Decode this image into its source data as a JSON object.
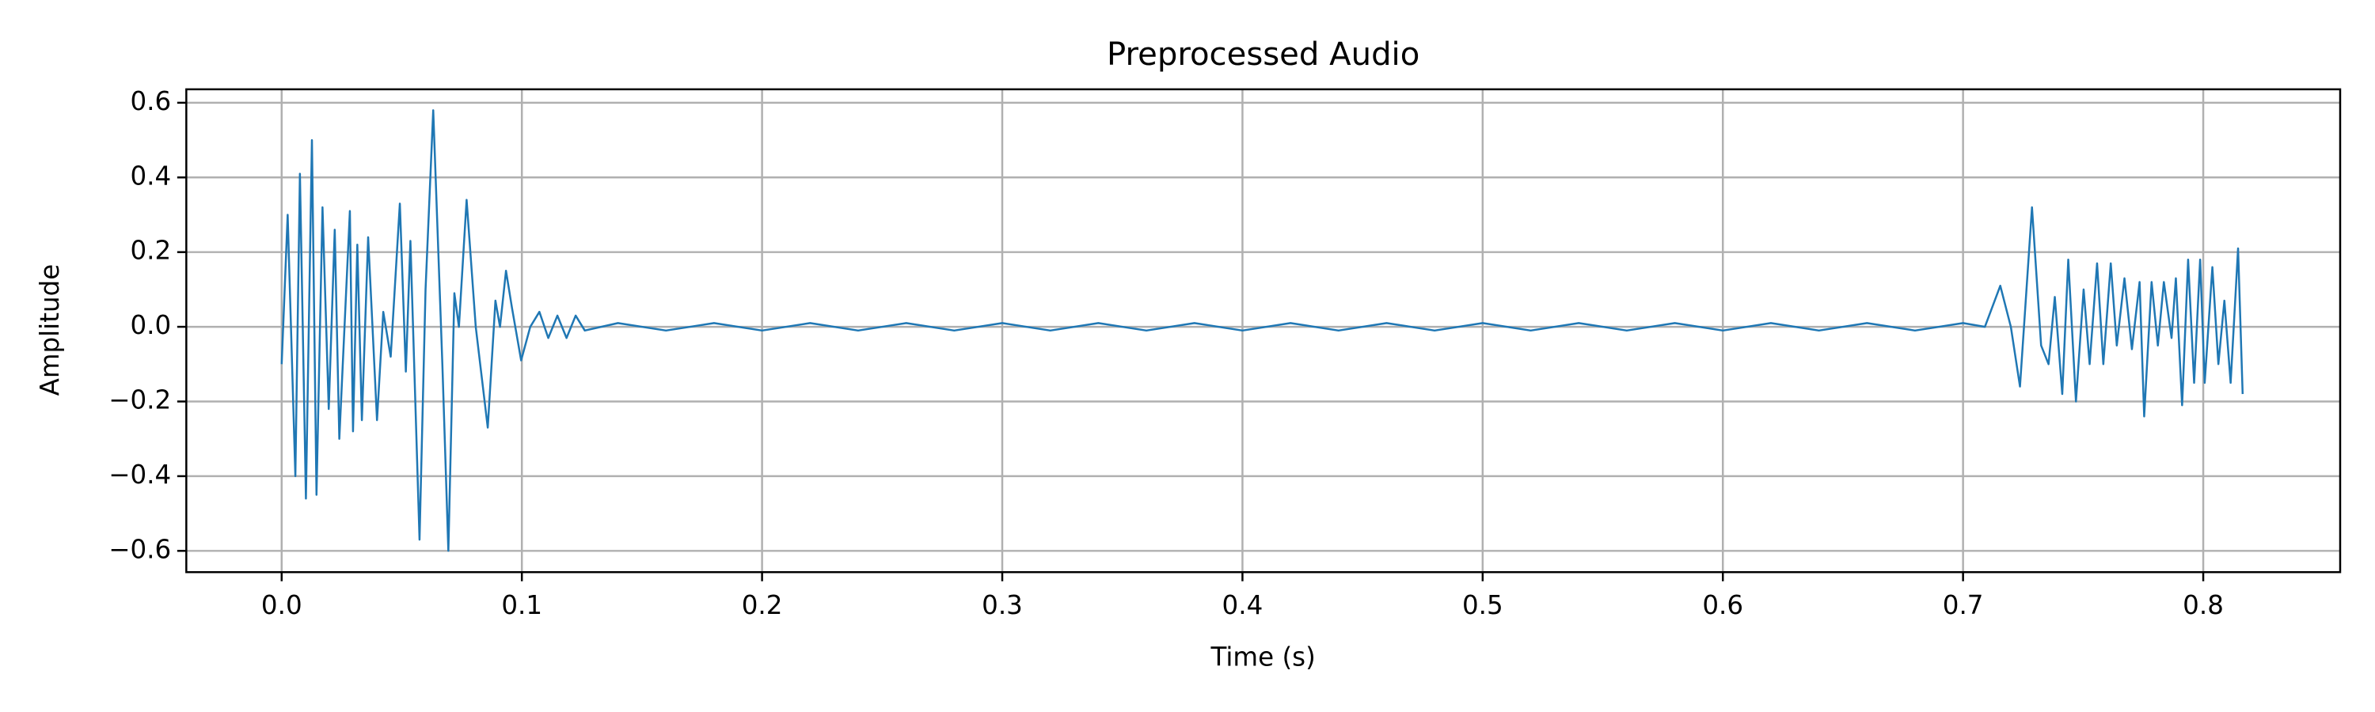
{
  "chart_data": {
    "type": "line",
    "title": "Preprocessed Audio",
    "x_label": "Time (s)",
    "y_label": "Amplitude",
    "color": "#1f77b4",
    "grid": true,
    "xlim": [
      -0.0397,
      0.857
    ],
    "ylim": [
      -0.657,
      0.636
    ],
    "xticks": [
      {
        "value": 0,
        "label": "0.0"
      },
      0.1,
      0.2,
      0.3,
      0.4,
      0.5,
      0.6,
      0.7,
      0.8
    ],
    "yticks": [
      {
        "value": -0.6,
        "label": "−0.6"
      },
      {
        "value": -0.4,
        "label": "−0.4"
      },
      {
        "value": -0.2,
        "label": "−0.2"
      },
      {
        "value": 0,
        "label": "0.0"
      },
      0.2,
      0.4,
      0.6
    ],
    "x": [
      0,
      0.0025,
      0.0057,
      0.0076,
      0.0101,
      0.0126,
      0.0145,
      0.017,
      0.0196,
      0.0221,
      0.024,
      0.0284,
      0.0297,
      0.0315,
      0.0334,
      0.036,
      0.0397,
      0.0423,
      0.0454,
      0.0492,
      0.0517,
      0.0536,
      0.0574,
      0.0599,
      0.0631,
      0.0669,
      0.0694,
      0.0719,
      0.0738,
      0.077,
      0.0808,
      0.0858,
      0.089,
      0.0909,
      0.0934,
      0.0959,
      0.0997,
      0.1035,
      0.1073,
      0.111,
      0.1148,
      0.1186,
      0.1224,
      0.1262,
      0.14,
      0.16,
      0.18,
      0.2,
      0.22,
      0.24,
      0.26,
      0.28,
      0.3,
      0.32,
      0.34,
      0.36,
      0.38,
      0.4,
      0.42,
      0.44,
      0.46,
      0.48,
      0.5,
      0.52,
      0.54,
      0.56,
      0.58,
      0.6,
      0.62,
      0.64,
      0.66,
      0.68,
      0.7,
      0.7091,
      0.7155,
      0.7199,
      0.7237,
      0.7287,
      0.7325,
      0.7356,
      0.7382,
      0.7413,
      0.7438,
      0.747,
      0.7502,
      0.7527,
      0.7558,
      0.7584,
      0.7615,
      0.764,
      0.7672,
      0.7703,
      0.7735,
      0.7754,
      0.7785,
      0.7811,
      0.7836,
      0.7868,
      0.7886,
      0.7912,
      0.7937,
      0.7962,
      0.7987,
      0.8006,
      0.8038,
      0.8063,
      0.8088,
      0.8114,
      0.8145,
      0.8164
    ],
    "values": [
      -0.1,
      0.3,
      -0.4,
      0.41,
      -0.46,
      0.5,
      -0.45,
      0.32,
      -0.22,
      0.26,
      -0.3,
      0.31,
      -0.28,
      0.22,
      -0.25,
      0.24,
      -0.25,
      0.04,
      -0.08,
      0.33,
      -0.12,
      0.23,
      -0.57,
      0.1,
      0.58,
      -0.1,
      -0.6,
      0.09,
      0,
      0.34,
      0,
      -0.27,
      0.07,
      0,
      0.15,
      0.05,
      -0.09,
      0,
      0.04,
      -0.03,
      0.03,
      -0.03,
      0.03,
      -0.01,
      0.01,
      -0.01,
      0.01,
      -0.01,
      0.01,
      -0.01,
      0.01,
      -0.01,
      0.01,
      -0.01,
      0.01,
      -0.01,
      0.01,
      -0.01,
      0.01,
      -0.01,
      0.01,
      -0.01,
      0.01,
      -0.01,
      0.01,
      -0.01,
      0.01,
      -0.01,
      0.01,
      -0.01,
      0.01,
      -0.01,
      0.01,
      0,
      0.11,
      0,
      -0.16,
      0.32,
      -0.05,
      -0.1,
      0.08,
      -0.18,
      0.18,
      -0.2,
      0.1,
      -0.1,
      0.17,
      -0.1,
      0.17,
      -0.05,
      0.13,
      -0.06,
      0.12,
      -0.24,
      0.12,
      -0.05,
      0.12,
      -0.03,
      0.13,
      -0.21,
      0.18,
      -0.15,
      0.18,
      -0.15,
      0.16,
      -0.1,
      0.07,
      -0.15,
      0.21,
      -0.18
    ]
  }
}
